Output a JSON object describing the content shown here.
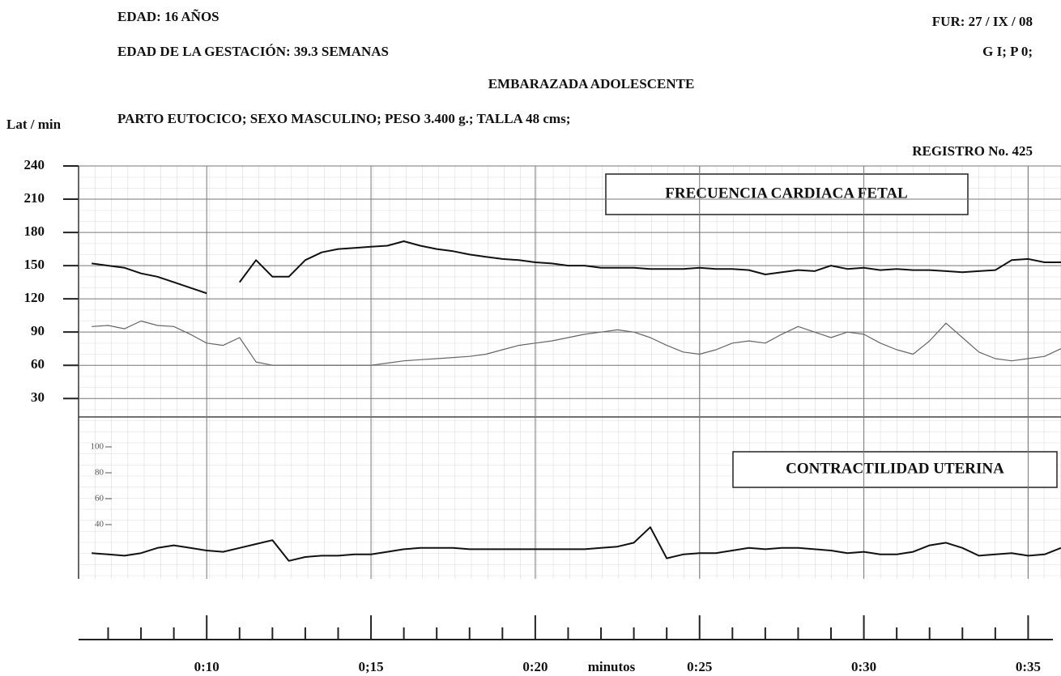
{
  "chart_data": {
    "type": "line",
    "title": "EMBARAZADA ADOLESCENTE",
    "annotations": [
      "EDAD: 16 AÑOS",
      "EDAD DE LA GESTACIÓN: 39.3 SEMANAS",
      "FUR: 27 / IX / 08",
      "G I; P 0;",
      "PARTO EUTOCICO; SEXO MASCULINO; PESO 3.400 g.; TALLA 48 cms;",
      "REGISTRO No. 425"
    ],
    "ylabel": "Lat / min",
    "xlabel": "minutos",
    "xlim": [
      6.1,
      36
    ],
    "xticks": [
      {
        "value": 10,
        "label": "0:10"
      },
      {
        "value": 15,
        "label": "0;15"
      },
      {
        "value": 20,
        "label": "0:20"
      },
      {
        "value": 25,
        "label": "0:25"
      },
      {
        "value": 30,
        "label": "0:30"
      },
      {
        "value": 35,
        "label": "0:35"
      }
    ],
    "x_minor_ticks": [
      7,
      8,
      9,
      11,
      12,
      13,
      14,
      16,
      17,
      18,
      19,
      21,
      22,
      23,
      24,
      26,
      27,
      28,
      29,
      31,
      32,
      33,
      34
    ],
    "ylim": [
      17,
      240
    ],
    "yticks": [
      30,
      60,
      90,
      120,
      150,
      180,
      210,
      240
    ],
    "y2lim": [
      0,
      100
    ],
    "y2ticks": [
      40,
      60,
      80,
      100
    ],
    "x": [
      6.5,
      7,
      7.5,
      8,
      8.5,
      9,
      9.5,
      10,
      10.5,
      11,
      11.5,
      12,
      12.5,
      13,
      13.5,
      14,
      14.5,
      15,
      15.5,
      16,
      16.5,
      17,
      17.5,
      18,
      18.5,
      19,
      19.5,
      20,
      20.5,
      21,
      21.5,
      22,
      22.5,
      23,
      23.5,
      24,
      24.5,
      25,
      25.5,
      26,
      26.5,
      27,
      27.5,
      28,
      28.5,
      29,
      29.5,
      30,
      30.5,
      31,
      31.5,
      32,
      32.5,
      33,
      33.5,
      34,
      34.5,
      35,
      35.5,
      36
    ],
    "series": [
      {
        "name": "FRECUENCIA CARDIACA FETAL",
        "color": "#111111",
        "values": [
          152,
          150,
          148,
          143,
          140,
          135,
          130,
          125,
          null,
          135,
          155,
          140,
          140,
          155,
          162,
          165,
          166,
          167,
          168,
          172,
          168,
          165,
          163,
          160,
          158,
          156,
          155,
          153,
          152,
          150,
          150,
          148,
          148,
          148,
          147,
          147,
          147,
          148,
          147,
          147,
          146,
          142,
          144,
          146,
          145,
          150,
          147,
          148,
          146,
          147,
          146,
          146,
          145,
          144,
          145,
          146,
          155,
          156,
          153,
          153
        ]
      },
      {
        "color": "#666666",
        "values": [
          95,
          96,
          93,
          100,
          96,
          95,
          88,
          80,
          78,
          85,
          63,
          60,
          60,
          60,
          60,
          60,
          60,
          60,
          62,
          64,
          65,
          66,
          67,
          68,
          70,
          74,
          78,
          80,
          82,
          85,
          88,
          90,
          92,
          90,
          85,
          78,
          72,
          70,
          74,
          80,
          82,
          80,
          88,
          95,
          90,
          85,
          90,
          88,
          80,
          74,
          70,
          82,
          98,
          85,
          72,
          66,
          64,
          66,
          68,
          75
        ]
      },
      {
        "name": "CONTRACTILIDAD UTERINA",
        "color": "#111111",
        "axis": "y2",
        "values": [
          18,
          17,
          16,
          18,
          22,
          24,
          22,
          20,
          19,
          22,
          25,
          28,
          12,
          15,
          16,
          16,
          17,
          17,
          19,
          21,
          22,
          22,
          22,
          21,
          21,
          21,
          21,
          21,
          21,
          21,
          21,
          22,
          23,
          26,
          38,
          14,
          17,
          18,
          18,
          20,
          22,
          21,
          22,
          22,
          21,
          20,
          18,
          19,
          17,
          17,
          19,
          24,
          26,
          22,
          16,
          17,
          18,
          16,
          17,
          22
        ]
      }
    ],
    "grid": true
  }
}
